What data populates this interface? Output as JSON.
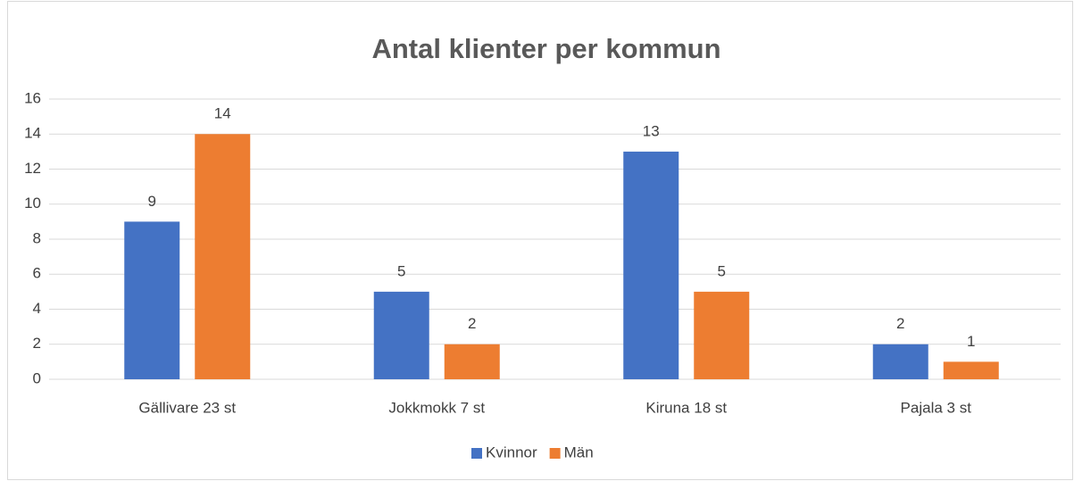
{
  "chart_data": {
    "type": "bar",
    "title": "Antal klienter per kommun",
    "categories": [
      "Gällivare 23 st",
      "Jokkmokk 7 st",
      "Kiruna 18 st",
      "Pajala 3 st"
    ],
    "series": [
      {
        "name": "Kvinnor",
        "color": "#4472c4",
        "values": [
          9,
          5,
          13,
          2
        ]
      },
      {
        "name": "Män",
        "color": "#ed7d31",
        "values": [
          14,
          2,
          5,
          1
        ]
      }
    ],
    "ylim": [
      0,
      16
    ],
    "yticks": [
      0,
      2,
      4,
      6,
      8,
      10,
      12,
      14,
      16
    ],
    "grid": true,
    "legend": "bottom"
  }
}
